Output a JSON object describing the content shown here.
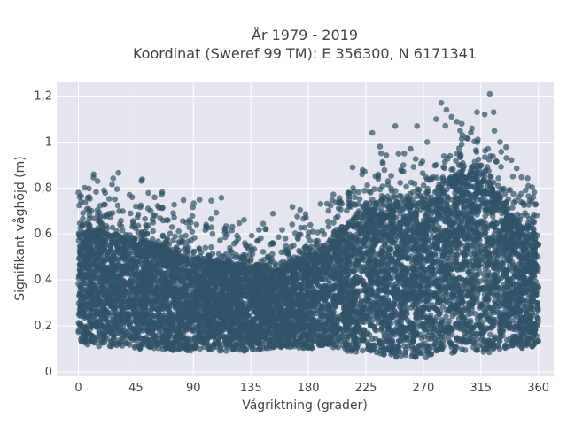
{
  "chart_data": {
    "type": "scatter",
    "title": "År 1979 - 2019",
    "subtitle": "Koordinat (Sweref 99 TM): E 356300, N 6171341",
    "xlabel": "Vågriktning (grader)",
    "ylabel": "Signifikant våghöjd (m)",
    "xlim": [
      -17,
      372
    ],
    "ylim": [
      -0.02,
      1.26
    ],
    "x_ticks": [
      0,
      45,
      90,
      135,
      180,
      225,
      270,
      315,
      360
    ],
    "x_tick_labels": [
      "0",
      "45",
      "90",
      "135",
      "180",
      "225",
      "270",
      "315",
      "360"
    ],
    "y_ticks": [
      0,
      0.2,
      0.4,
      0.6,
      0.8,
      1.0,
      1.2
    ],
    "y_tick_labels": [
      "0",
      "0,2",
      "0,4",
      "0,6",
      "0,8",
      "1",
      "1,2"
    ],
    "grid": true,
    "background_color": "#e5e5ef",
    "marker_color": "#2f5368",
    "marker_opacity": 0.7,
    "envelope": {
      "direction": [
        0,
        15,
        30,
        45,
        60,
        75,
        90,
        105,
        120,
        135,
        150,
        165,
        180,
        195,
        210,
        225,
        240,
        255,
        270,
        285,
        300,
        315,
        330,
        345,
        360
      ],
      "dense_max_height": [
        0.6,
        0.62,
        0.6,
        0.58,
        0.56,
        0.52,
        0.5,
        0.48,
        0.47,
        0.46,
        0.46,
        0.47,
        0.5,
        0.56,
        0.64,
        0.7,
        0.72,
        0.73,
        0.74,
        0.8,
        0.86,
        0.86,
        0.78,
        0.64,
        0.6
      ],
      "dense_min_height": [
        0.12,
        0.11,
        0.11,
        0.1,
        0.1,
        0.09,
        0.09,
        0.09,
        0.09,
        0.09,
        0.1,
        0.1,
        0.1,
        0.1,
        0.09,
        0.08,
        0.07,
        0.06,
        0.06,
        0.07,
        0.08,
        0.08,
        0.09,
        0.1,
        0.11
      ]
    },
    "outliers": [
      {
        "x": 0,
        "y": 0.78
      },
      {
        "x": 1,
        "y": 0.76
      },
      {
        "x": 2,
        "y": 0.74
      },
      {
        "x": 15,
        "y": 0.83
      },
      {
        "x": 20,
        "y": 0.79
      },
      {
        "x": 40,
        "y": 0.77
      },
      {
        "x": 42,
        "y": 0.76
      },
      {
        "x": 45,
        "y": 0.72
      },
      {
        "x": 60,
        "y": 0.68
      },
      {
        "x": 70,
        "y": 0.66
      },
      {
        "x": 88,
        "y": 0.65
      },
      {
        "x": 100,
        "y": 0.64
      },
      {
        "x": 105,
        "y": 0.6
      },
      {
        "x": 140,
        "y": 0.57
      },
      {
        "x": 162,
        "y": 0.58
      },
      {
        "x": 215,
        "y": 0.8
      },
      {
        "x": 222,
        "y": 0.86
      },
      {
        "x": 230,
        "y": 1.04
      },
      {
        "x": 236,
        "y": 0.98
      },
      {
        "x": 248,
        "y": 1.07
      },
      {
        "x": 255,
        "y": 0.95
      },
      {
        "x": 265,
        "y": 1.07
      },
      {
        "x": 273,
        "y": 1.0
      },
      {
        "x": 280,
        "y": 1.1
      },
      {
        "x": 284,
        "y": 1.17
      },
      {
        "x": 288,
        "y": 1.14
      },
      {
        "x": 292,
        "y": 1.11
      },
      {
        "x": 300,
        "y": 1.08
      },
      {
        "x": 308,
        "y": 1.06
      },
      {
        "x": 312,
        "y": 1.13
      },
      {
        "x": 318,
        "y": 1.12
      },
      {
        "x": 322,
        "y": 1.21
      },
      {
        "x": 325,
        "y": 1.13
      },
      {
        "x": 330,
        "y": 1.0
      },
      {
        "x": 335,
        "y": 0.93
      },
      {
        "x": 340,
        "y": 0.85
      },
      {
        "x": 350,
        "y": 0.79
      },
      {
        "x": 356,
        "y": 0.76
      },
      {
        "x": 358,
        "y": 0.73
      }
    ]
  }
}
